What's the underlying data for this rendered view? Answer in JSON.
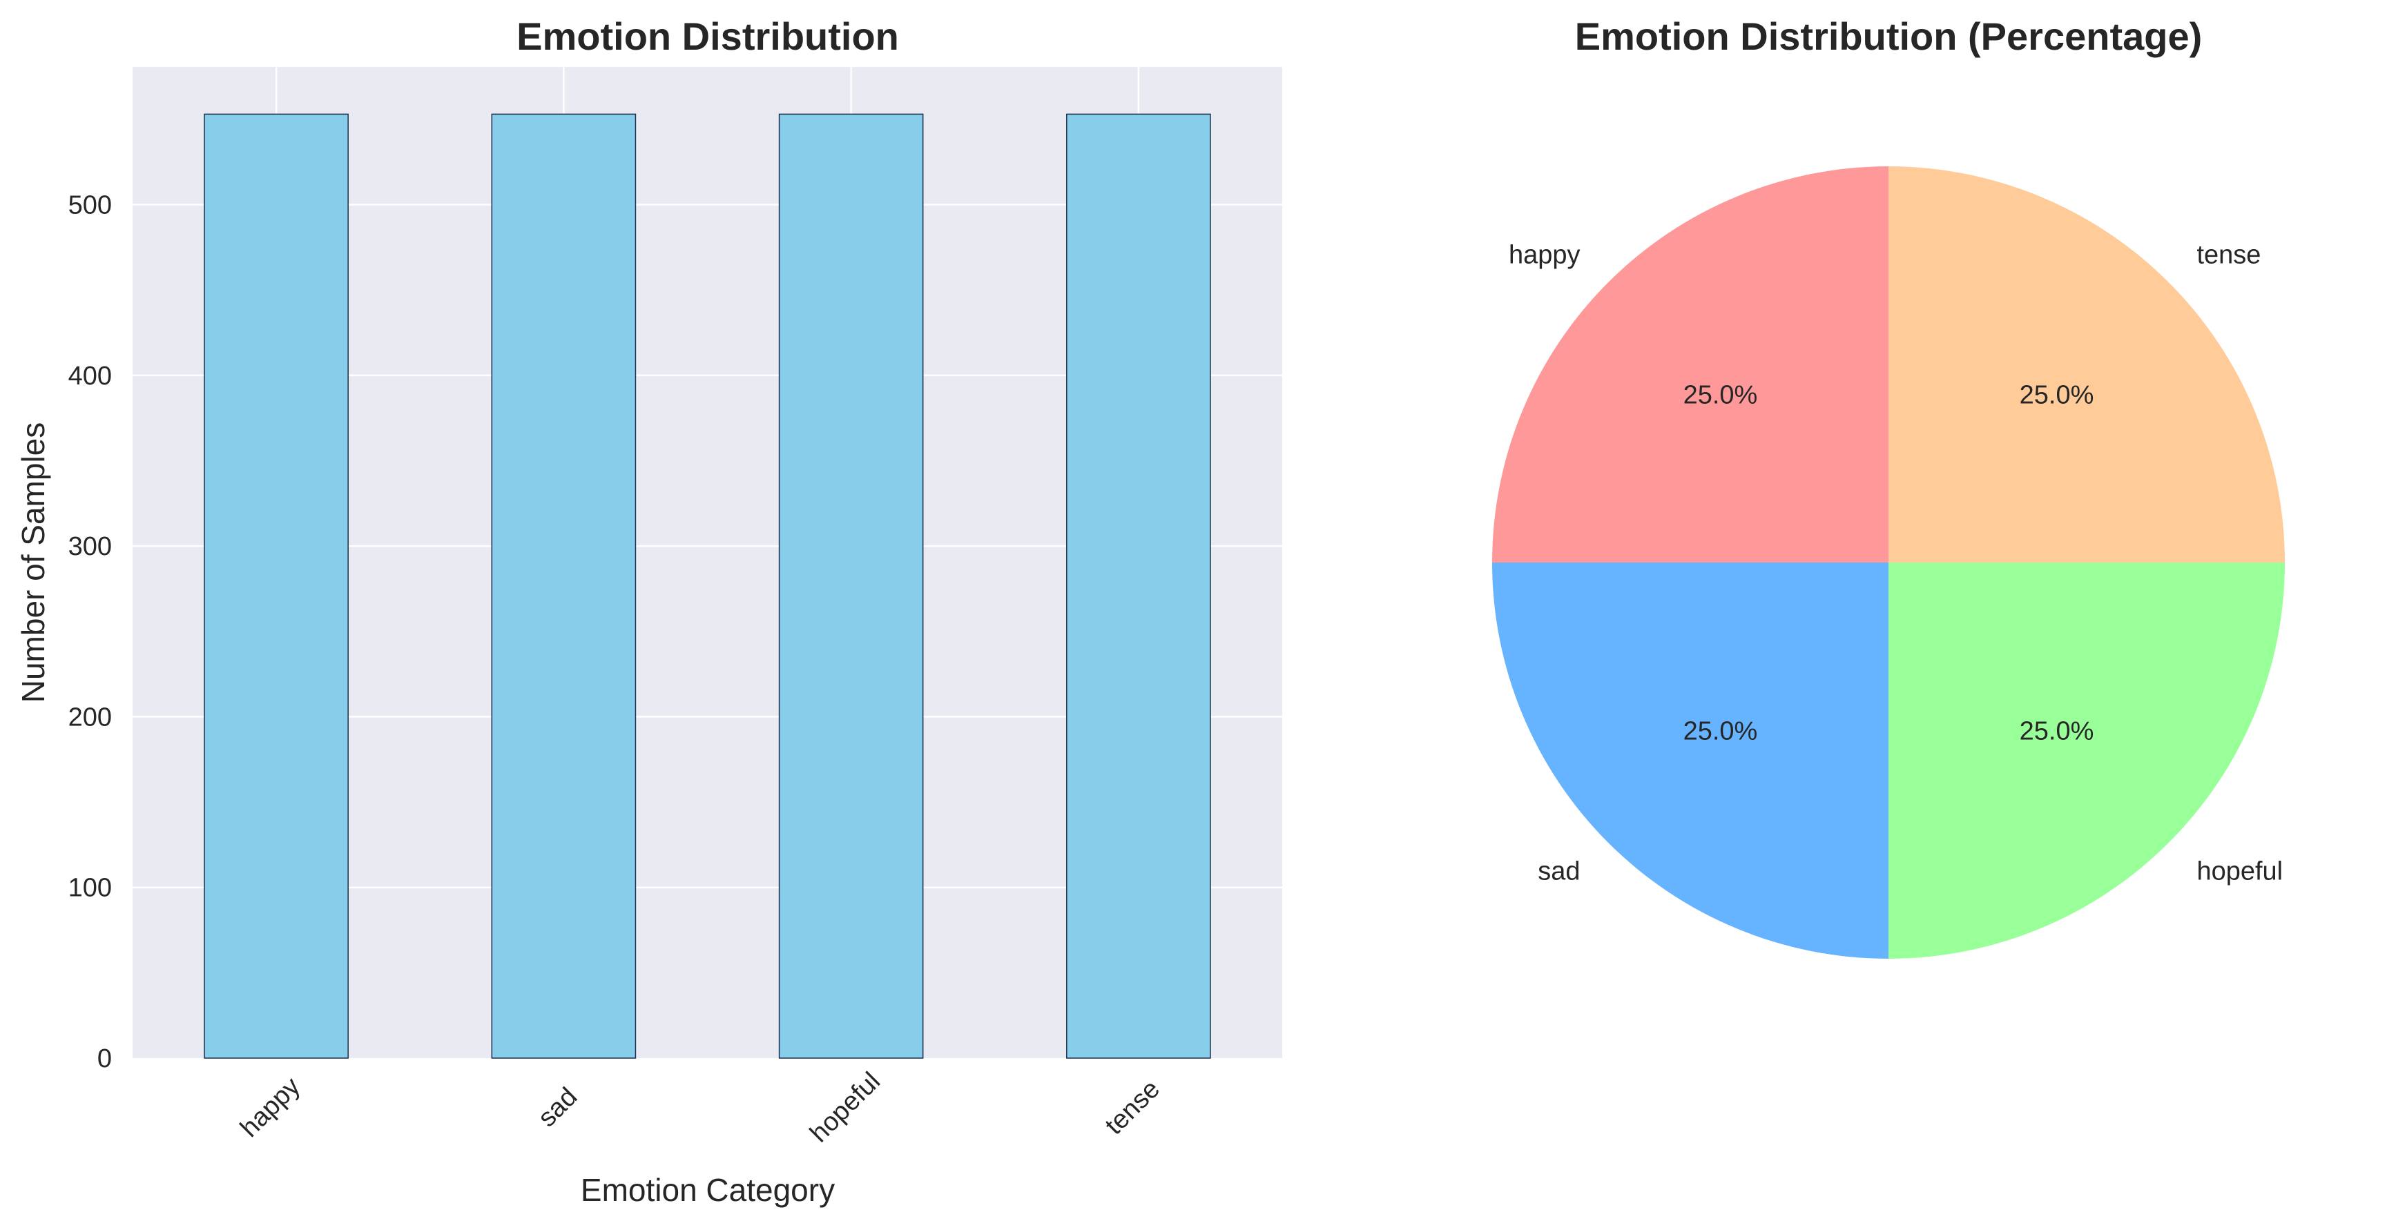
{
  "chart_data": [
    {
      "type": "bar",
      "title": "Emotion Distribution",
      "xlabel": "Emotion Category",
      "ylabel": "Number of Samples",
      "categories": [
        "happy",
        "sad",
        "hopeful",
        "tense"
      ],
      "values": [
        553,
        553,
        553,
        553
      ],
      "ylim": [
        0,
        580.65
      ],
      "yticks": [
        0,
        100,
        200,
        300,
        400,
        500
      ],
      "grid": true,
      "bar_color": "#87ceeb",
      "bar_edge_color": "#1f2d4d",
      "background_color": "#eaeaf2"
    },
    {
      "type": "pie",
      "title": "Emotion Distribution (Percentage)",
      "labels": [
        "happy",
        "sad",
        "hopeful",
        "tense"
      ],
      "values": [
        25.0,
        25.0,
        25.0,
        25.0
      ],
      "value_labels": [
        "25.0%",
        "25.0%",
        "25.0%",
        "25.0%"
      ],
      "colors": [
        "#ff9999",
        "#66b3ff",
        "#99ff99",
        "#ffcc99"
      ],
      "start_angle_deg": 90
    }
  ]
}
